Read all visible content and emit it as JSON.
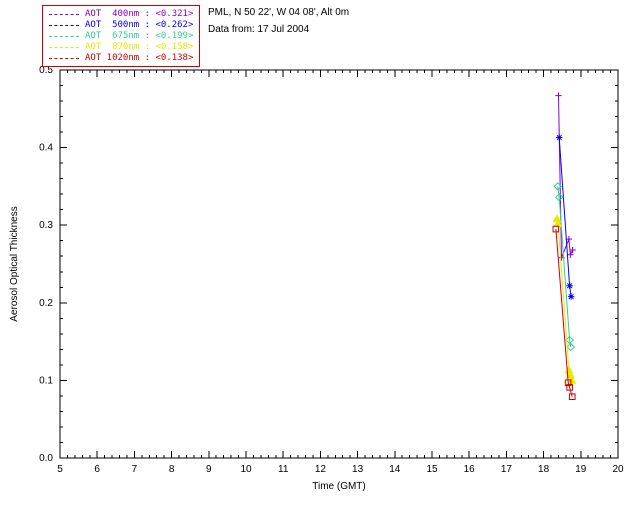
{
  "header": {
    "site_line": "PML, N 50 22', W 04 08', Alt 0m",
    "date_line": "Data from: 17 Jul 2004"
  },
  "legend": {
    "border_color": "#cc0000",
    "entries": [
      {
        "label": "AOT  400nm : <0.321>",
        "color": "#8800cc"
      },
      {
        "label": "AOT  500nm : <0.262>",
        "color": "#0000ff"
      },
      {
        "label": "AOT  675nm : <0.199>",
        "color": "#33cc99"
      },
      {
        "label": "AOT  870nm : <0.158>",
        "color": "#e8e800"
      },
      {
        "label": "AOT 1020nm : <0.138>",
        "color": "#cc0000"
      }
    ]
  },
  "chart_data": {
    "type": "line",
    "title": "",
    "xlabel": "Time (GMT)",
    "ylabel": "Aerosol Optical Thickness",
    "xlim": [
      5,
      20
    ],
    "ylim": [
      0.0,
      0.5
    ],
    "xticks": [
      5,
      6,
      7,
      8,
      9,
      10,
      11,
      12,
      13,
      14,
      15,
      16,
      17,
      18,
      19,
      20
    ],
    "yticks": [
      0.0,
      0.1,
      0.2,
      0.3,
      0.4,
      0.5
    ],
    "xminor": 5,
    "yminor": 5,
    "grid": false,
    "legend_position": "top-left",
    "axis_color": "#000000",
    "series": [
      {
        "name": "AOT 400nm",
        "mean": "<0.321>",
        "color": "#8800cc",
        "marker": "plus",
        "points": [
          [
            18.4,
            0.467
          ],
          [
            18.48,
            0.258
          ],
          [
            18.68,
            0.282
          ],
          [
            18.72,
            0.262
          ],
          [
            18.78,
            0.268
          ]
        ]
      },
      {
        "name": "AOT 500nm",
        "mean": "<0.262>",
        "color": "#0000ff",
        "marker": "asterisk",
        "points": [
          [
            18.42,
            0.413
          ],
          [
            18.7,
            0.222
          ],
          [
            18.74,
            0.208
          ]
        ]
      },
      {
        "name": "AOT 675nm",
        "mean": "<0.199>",
        "color": "#33cc99",
        "marker": "diamond",
        "points": [
          [
            18.38,
            0.35
          ],
          [
            18.42,
            0.336
          ],
          [
            18.7,
            0.152
          ],
          [
            18.73,
            0.143
          ]
        ]
      },
      {
        "name": "AOT 870nm",
        "mean": "<0.158>",
        "color": "#e8e800",
        "marker": "triangle",
        "points": [
          [
            18.36,
            0.308
          ],
          [
            18.39,
            0.302
          ],
          [
            18.68,
            0.113
          ],
          [
            18.72,
            0.107
          ],
          [
            18.76,
            0.1
          ]
        ]
      },
      {
        "name": "AOT 1020nm",
        "mean": "<0.138>",
        "color": "#cc0000",
        "marker": "square",
        "points": [
          [
            18.33,
            0.295
          ],
          [
            18.66,
            0.097
          ],
          [
            18.7,
            0.091
          ],
          [
            18.77,
            0.079
          ]
        ]
      }
    ]
  }
}
